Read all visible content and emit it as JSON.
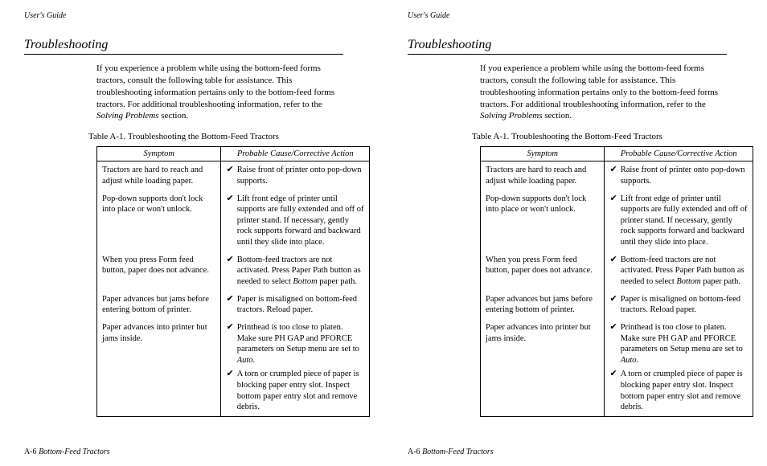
{
  "header": "User's Guide",
  "section_title": "Troubleshooting",
  "intro_pre": "If you experience a problem while using the bottom-feed forms tractors, consult the following table for assistance.  This troubleshooting information pertains only to the bottom-feed forms tractors.  For additional troubleshooting information, refer to the ",
  "intro_ital": "Solving Problems",
  "intro_post": " section.",
  "table_caption": "Table A-1.  Troubleshooting the Bottom-Feed Tractors",
  "th_symptom": "Symptom",
  "th_action": "Probable Cause/Corrective Action",
  "rows": [
    {
      "symptom": "Tractors are hard to reach and adjust while loading paper.",
      "actions": [
        {
          "pre": "Raise front of printer onto pop-down supports."
        }
      ]
    },
    {
      "symptom": "Pop-down supports don't lock into place or won't unlock.",
      "actions": [
        {
          "pre": "Lift front edge of printer until supports are fully extended and off of printer stand.  If necessary, gently rock supports forward and backward until they slide into place."
        }
      ]
    },
    {
      "symptom": "When you press Form feed button, paper does not advance.",
      "actions": [
        {
          "pre": "Bottom-feed tractors are not activated.  Press Paper Path button as needed to select ",
          "ital": "Bottom",
          "post": " paper path."
        }
      ]
    },
    {
      "symptom": "Paper advances but jams before entering bottom of printer.",
      "actions": [
        {
          "pre": "Paper is misaligned on bottom-feed tractors.  Reload paper."
        }
      ]
    },
    {
      "symptom": "Paper advances into printer but jams inside.",
      "actions": [
        {
          "pre": "Printhead is too close to platen.  Make sure PH GAP and PFORCE parameters on Setup menu are set to ",
          "ital": "Auto",
          "post": "."
        },
        {
          "pre": "A torn or crumpled piece of paper is blocking paper entry slot.  Inspect bottom paper entry slot and remove debris."
        }
      ]
    }
  ],
  "footer_page": "A-6",
  "footer_title": " Bottom-Feed Tractors"
}
